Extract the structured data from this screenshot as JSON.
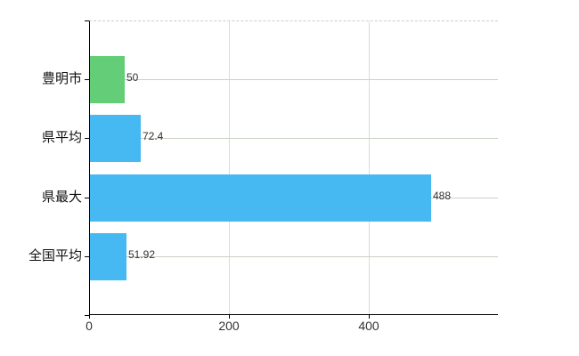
{
  "chart_data": {
    "type": "bar",
    "orientation": "horizontal",
    "title": "",
    "categories": [
      "豊明市",
      "県平均",
      "県最大",
      "全国平均"
    ],
    "values": [
      50,
      72.4,
      488,
      51.92
    ],
    "value_labels": [
      "50",
      "72.4",
      "488",
      "51.92"
    ],
    "bar_colors": [
      "#64cd78",
      "#46b9f2",
      "#46b9f2",
      "#46b9f2"
    ],
    "x_ticks": [
      0,
      200,
      400
    ],
    "x_tick_labels": [
      "0",
      "200",
      "400"
    ],
    "xlim": [
      0,
      585
    ],
    "grid": true,
    "legend": "none"
  },
  "colors": {
    "bar_green": "#64cd78",
    "bar_blue": "#46b9f2",
    "axis": "#000000",
    "grid_horizontal": "#c9d1c5",
    "grid_vertical": "#dcdcdc",
    "top_border_dashed": "#cccccc",
    "tick_text": "#333333",
    "value_text": "#333333",
    "category_text": "#111111",
    "background": "#ffffff"
  }
}
